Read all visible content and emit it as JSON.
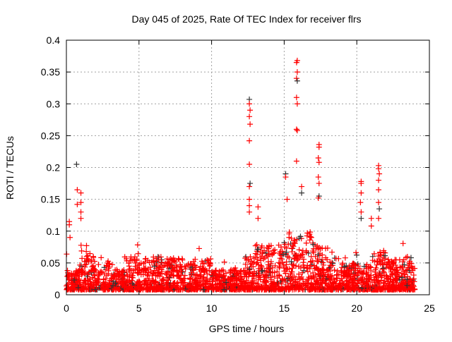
{
  "chart_data": {
    "type": "scatter",
    "title": "Day 045 of 2025, Rate Of TEC Index for receiver flrs",
    "xlabel": "GPS time / hours",
    "ylabel": "ROTI / TECUs",
    "xlim": [
      0,
      25
    ],
    "ylim": [
      0,
      0.4
    ],
    "xticks": [
      "0",
      "5",
      "10",
      "15",
      "20",
      "25"
    ],
    "yticks": [
      "0",
      "0.05",
      "0.1",
      "0.15",
      "0.2",
      "0.25",
      "0.3",
      "0.35",
      "0.4"
    ],
    "grid": true,
    "marker": "+",
    "colors": {
      "primary": "#ff0000",
      "secondary": "#333333"
    },
    "baseline_envelope_by_hour": [
      0.04,
      0.07,
      0.05,
      0.04,
      0.06,
      0.06,
      0.06,
      0.06,
      0.05,
      0.06,
      0.04,
      0.04,
      0.06,
      0.08,
      0.08,
      0.1,
      0.1,
      0.08,
      0.06,
      0.05,
      0.05,
      0.07,
      0.06,
      0.06,
      0.04
    ],
    "baseline_floor": 0.008,
    "data_span_hours": [
      0,
      24
    ],
    "spikes": [
      [
        0.2,
        0.115
      ],
      [
        0.2,
        0.11
      ],
      [
        0.25,
        0.09
      ],
      [
        0.7,
        0.205
      ],
      [
        0.75,
        0.165
      ],
      [
        0.75,
        0.142
      ],
      [
        1.0,
        0.16
      ],
      [
        1.0,
        0.145
      ],
      [
        1.0,
        0.13
      ],
      [
        1.0,
        0.12
      ],
      [
        12.6,
        0.307
      ],
      [
        12.6,
        0.3
      ],
      [
        12.65,
        0.29
      ],
      [
        12.6,
        0.28
      ],
      [
        12.65,
        0.268
      ],
      [
        12.6,
        0.242
      ],
      [
        12.6,
        0.205
      ],
      [
        12.65,
        0.175
      ],
      [
        12.6,
        0.17
      ],
      [
        12.6,
        0.15
      ],
      [
        12.6,
        0.14
      ],
      [
        12.6,
        0.13
      ],
      [
        13.2,
        0.138
      ],
      [
        13.2,
        0.12
      ],
      [
        15.1,
        0.19
      ],
      [
        15.1,
        0.185
      ],
      [
        15.2,
        0.15
      ],
      [
        15.9,
        0.368
      ],
      [
        15.85,
        0.365
      ],
      [
        15.9,
        0.35
      ],
      [
        15.85,
        0.34
      ],
      [
        15.9,
        0.336
      ],
      [
        15.85,
        0.31
      ],
      [
        15.9,
        0.3
      ],
      [
        15.85,
        0.26
      ],
      [
        15.9,
        0.258
      ],
      [
        15.85,
        0.21
      ],
      [
        16.2,
        0.17
      ],
      [
        16.2,
        0.16
      ],
      [
        17.4,
        0.236
      ],
      [
        17.4,
        0.232
      ],
      [
        17.35,
        0.215
      ],
      [
        17.4,
        0.208
      ],
      [
        17.35,
        0.185
      ],
      [
        17.4,
        0.175
      ],
      [
        17.4,
        0.155
      ],
      [
        17.35,
        0.152
      ],
      [
        20.3,
        0.178
      ],
      [
        20.3,
        0.175
      ],
      [
        20.3,
        0.16
      ],
      [
        20.25,
        0.145
      ],
      [
        20.3,
        0.13
      ],
      [
        20.3,
        0.12
      ],
      [
        21.5,
        0.203
      ],
      [
        21.5,
        0.198
      ],
      [
        21.55,
        0.19
      ],
      [
        21.5,
        0.18
      ],
      [
        21.5,
        0.165
      ],
      [
        21.5,
        0.145
      ],
      [
        21.55,
        0.135
      ],
      [
        21.5,
        0.12
      ],
      [
        21.0,
        0.108
      ],
      [
        21.0,
        0.12
      ]
    ]
  }
}
